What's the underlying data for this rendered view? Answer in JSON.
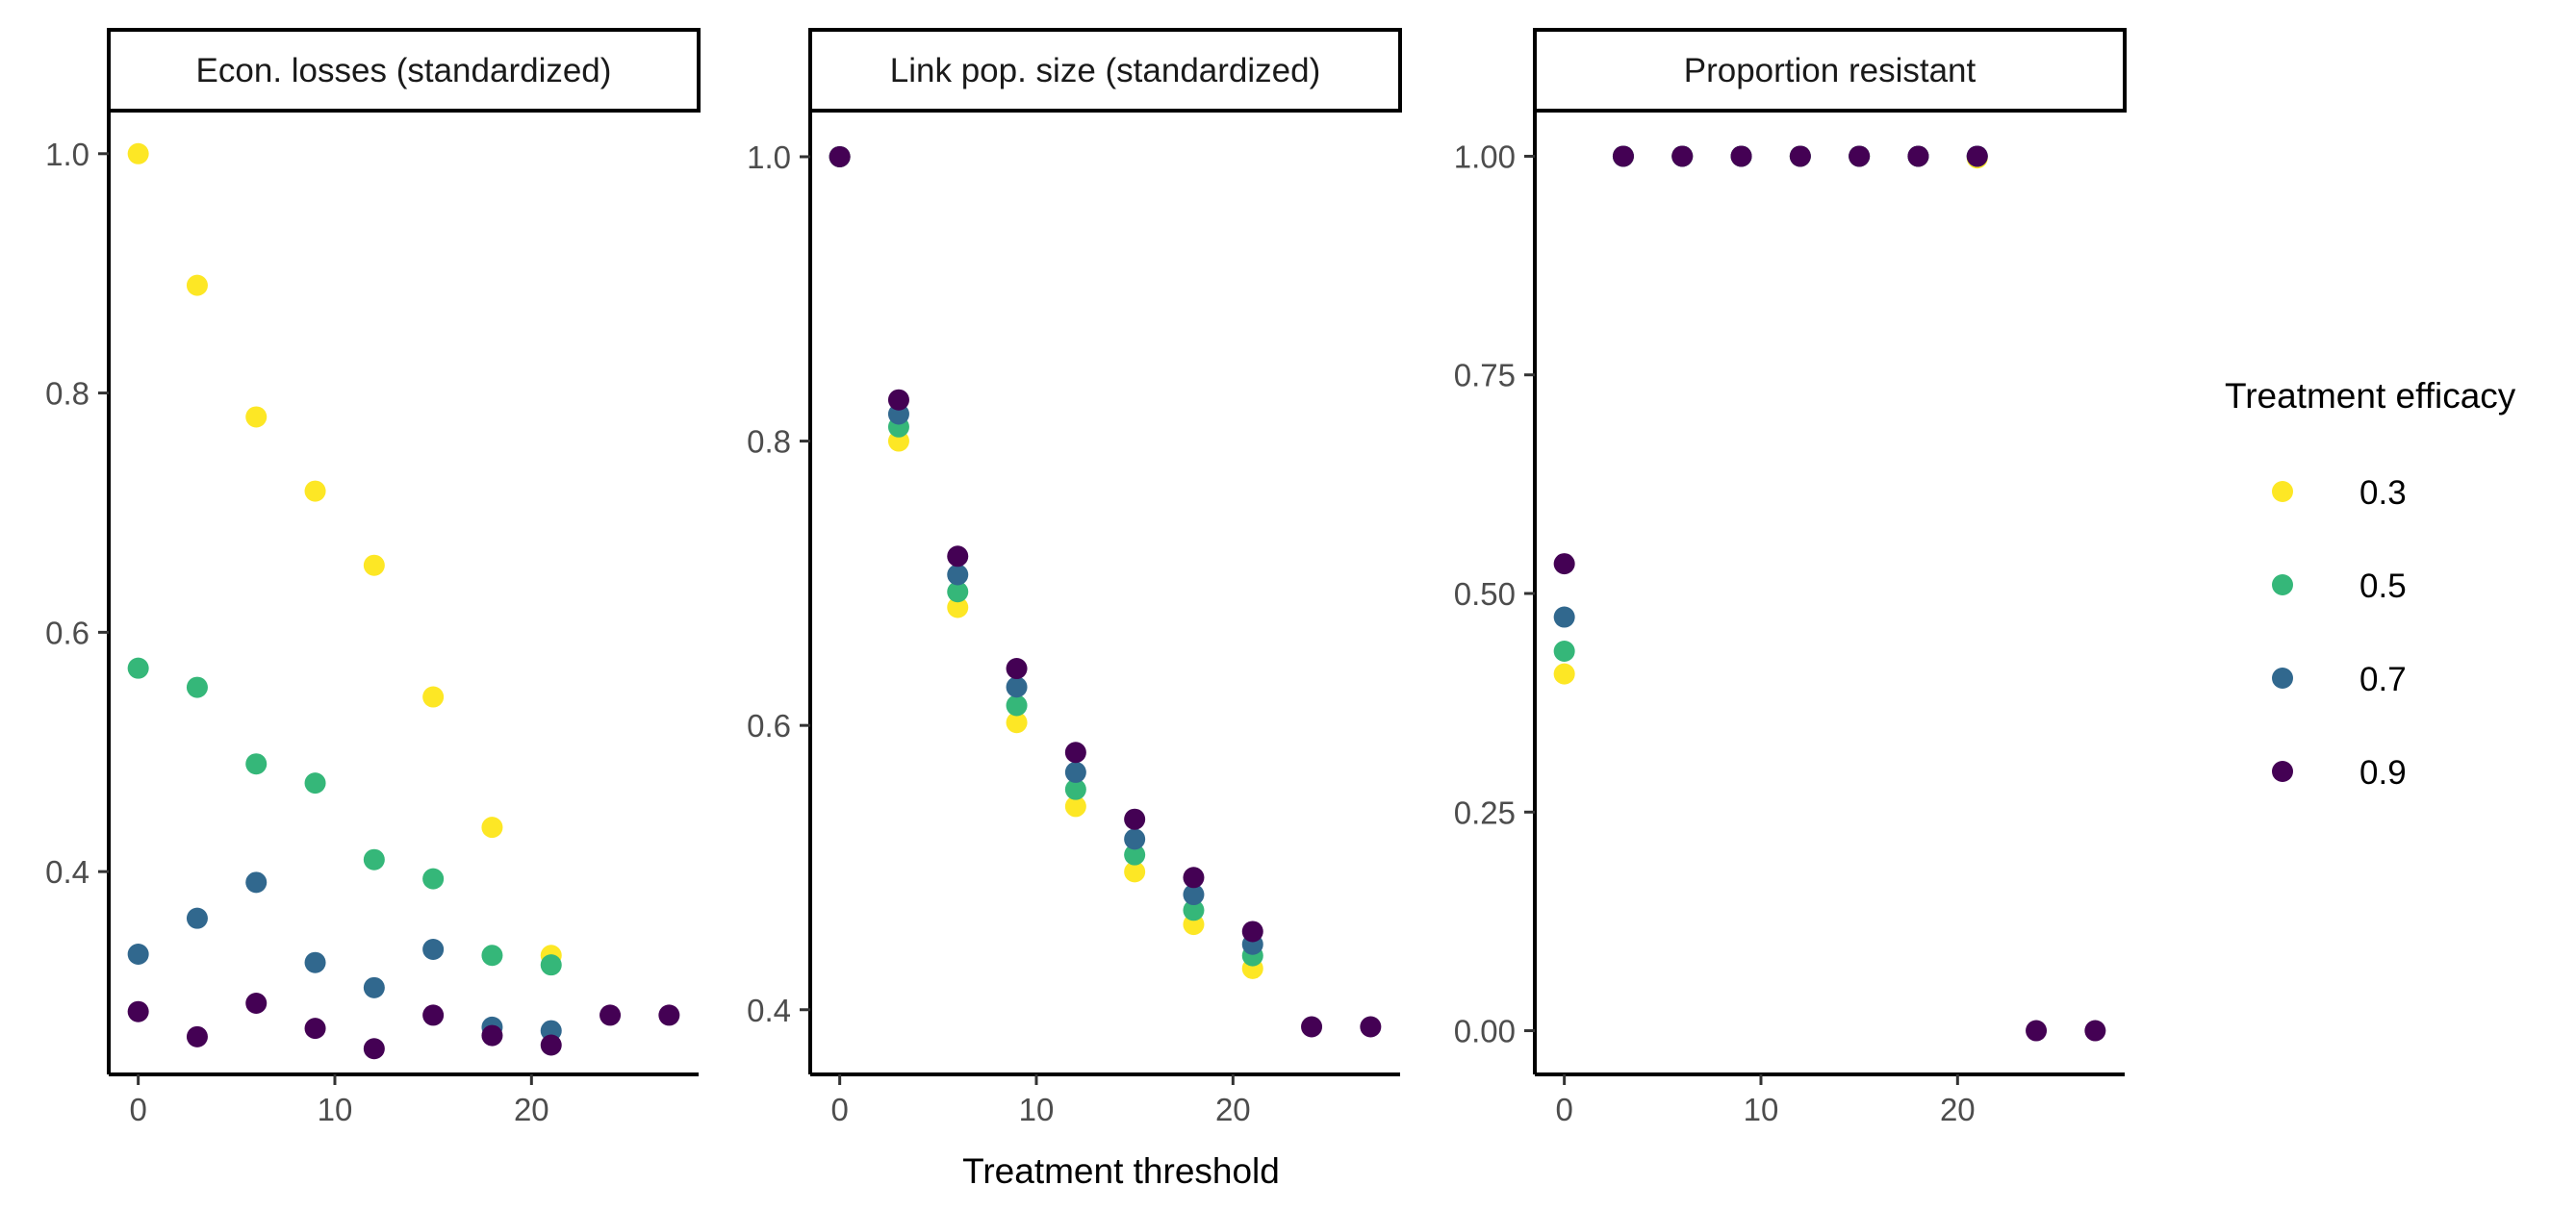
{
  "figure": {
    "xlabel": "Treatment threshold",
    "legend": {
      "title": "Treatment efficacy",
      "placement": "right",
      "entries": [
        {
          "label": "0.3",
          "color": "#fde725"
        },
        {
          "label": "0.5",
          "color": "#35b779"
        },
        {
          "label": "0.7",
          "color": "#31688e"
        },
        {
          "label": "0.9",
          "color": "#440154"
        }
      ]
    }
  },
  "chart_data": [
    {
      "type": "scatter",
      "title": "Econ. losses (standardized)",
      "xlabel": "Treatment threshold",
      "ylabel": "",
      "xlim": [
        -1.5,
        28.5
      ],
      "ylim": [
        0.2305,
        1.0344
      ],
      "x_ticks": [
        0,
        10,
        20
      ],
      "x_tick_labels": [
        "0",
        "10",
        "20"
      ],
      "y_ticks": [
        0.4,
        0.6,
        0.8,
        1.0
      ],
      "y_tick_labels": [
        "0.4",
        "0.6",
        "0.8",
        "1.0"
      ],
      "grid": false,
      "series": [
        {
          "name": "0.3",
          "color": "#fde725",
          "x": [
            0,
            3,
            6,
            9,
            12,
            15,
            18,
            21
          ],
          "y": [
            1.0,
            0.89,
            0.78,
            0.718,
            0.656,
            0.546,
            0.437,
            0.33
          ]
        },
        {
          "name": "0.5",
          "color": "#35b779",
          "x": [
            0,
            3,
            6,
            9,
            12,
            15,
            18,
            21
          ],
          "y": [
            0.57,
            0.554,
            0.49,
            0.474,
            0.41,
            0.394,
            0.33,
            0.322
          ]
        },
        {
          "name": "0.7",
          "color": "#31688e",
          "x": [
            0,
            3,
            6,
            9,
            12,
            15,
            18,
            21
          ],
          "y": [
            0.331,
            0.361,
            0.391,
            0.324,
            0.303,
            0.335,
            0.27,
            0.267
          ]
        },
        {
          "name": "0.9",
          "color": "#440154",
          "x": [
            0,
            3,
            6,
            9,
            12,
            15,
            18,
            21,
            24,
            27
          ],
          "y": [
            0.283,
            0.262,
            0.29,
            0.269,
            0.252,
            0.28,
            0.263,
            0.255,
            0.28,
            0.28
          ]
        }
      ]
    },
    {
      "type": "scatter",
      "title": "Link pop. size (standardized)",
      "xlabel": "Treatment threshold",
      "ylabel": "",
      "xlim": [
        -1.5,
        28.5
      ],
      "ylim": [
        0.3545,
        1.0311
      ],
      "x_ticks": [
        0,
        10,
        20
      ],
      "x_tick_labels": [
        "0",
        "10",
        "20"
      ],
      "y_ticks": [
        0.4,
        0.6,
        0.8,
        1.0
      ],
      "y_tick_labels": [
        "0.4",
        "0.6",
        "0.8",
        "1.0"
      ],
      "grid": false,
      "series": [
        {
          "name": "0.3",
          "color": "#fde725",
          "x": [
            0,
            3,
            6,
            9,
            12,
            15,
            18,
            21
          ],
          "y": [
            1.0,
            0.8,
            0.683,
            0.602,
            0.543,
            0.497,
            0.46,
            0.429
          ]
        },
        {
          "name": "0.5",
          "color": "#35b779",
          "x": [
            0,
            3,
            6,
            9,
            12,
            15,
            18,
            21
          ],
          "y": [
            1.0,
            0.81,
            0.694,
            0.614,
            0.555,
            0.509,
            0.47,
            0.438
          ]
        },
        {
          "name": "0.7",
          "color": "#31688e",
          "x": [
            0,
            3,
            6,
            9,
            12,
            15,
            18,
            21
          ],
          "y": [
            1.0,
            0.819,
            0.706,
            0.627,
            0.567,
            0.52,
            0.481,
            0.446
          ]
        },
        {
          "name": "0.9",
          "color": "#440154",
          "x": [
            0,
            3,
            6,
            9,
            12,
            15,
            18,
            21,
            24,
            27
          ],
          "y": [
            1.0,
            0.829,
            0.719,
            0.64,
            0.581,
            0.534,
            0.493,
            0.455,
            0.388,
            0.388
          ]
        }
      ]
    },
    {
      "type": "scatter",
      "title": "Proportion resistant",
      "xlabel": "Treatment threshold",
      "ylabel": "",
      "xlim": [
        -1.5,
        28.5
      ],
      "ylim": [
        -0.05,
        1.05
      ],
      "x_ticks": [
        0,
        10,
        20
      ],
      "x_tick_labels": [
        "0",
        "10",
        "20"
      ],
      "y_ticks": [
        0.0,
        0.25,
        0.5,
        0.75,
        1.0
      ],
      "y_tick_labels": [
        "0.00",
        "0.25",
        "0.50",
        "0.75",
        "1.00"
      ],
      "grid": false,
      "series": [
        {
          "name": "0.3",
          "color": "#fde725",
          "x": [
            0,
            3,
            6,
            9,
            12,
            15,
            18,
            21
          ],
          "y": [
            0.408,
            1.0,
            1.0,
            1.0,
            1.0,
            1.0,
            1.0,
            0.998
          ]
        },
        {
          "name": "0.5",
          "color": "#35b779",
          "x": [
            0,
            3,
            6,
            9,
            12,
            15,
            18,
            21
          ],
          "y": [
            0.434,
            1.0,
            1.0,
            1.0,
            1.0,
            1.0,
            1.0,
            1.0
          ]
        },
        {
          "name": "0.7",
          "color": "#31688e",
          "x": [
            0,
            3,
            6,
            9,
            12,
            15,
            18,
            21
          ],
          "y": [
            0.473,
            1.0,
            1.0,
            1.0,
            1.0,
            1.0,
            1.0,
            1.0
          ]
        },
        {
          "name": "0.9",
          "color": "#440154",
          "x": [
            0,
            3,
            6,
            9,
            12,
            15,
            18,
            21,
            24,
            27
          ],
          "y": [
            0.534,
            1.0,
            1.0,
            1.0,
            1.0,
            1.0,
            1.0,
            1.0,
            0.0,
            0.0
          ]
        }
      ]
    }
  ]
}
